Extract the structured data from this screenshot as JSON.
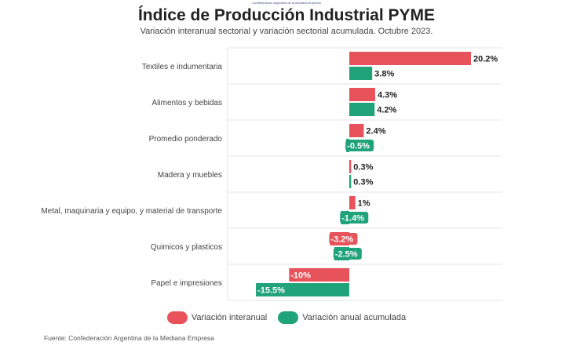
{
  "header_small": "Confederación Argentina de la Mediana Empresa",
  "source": "Fuente: Confederación Argentina de la Mediana Empresa",
  "colors": {
    "interanual": "#e8525a",
    "acumulada": "#21a37a"
  },
  "chart_data": {
    "type": "bar",
    "orientation": "horizontal",
    "title": "Índice de Producción Industrial PYME",
    "subtitle": "Variación interanual sectorial y variación sectorial acumulada. Octubre 2023.",
    "categories": [
      "Textiles e indumentaria",
      "Alimentos y bebidas",
      "Promedio ponderado",
      "Madera y muebles",
      "Metal, maquinaria y equipo, y material de transporte",
      "Quimicos y plasticos",
      "Papel e impresiones"
    ],
    "series": [
      {
        "name": "Variación interanual",
        "values": [
          20.2,
          4.3,
          2.4,
          0.3,
          1,
          -3.2,
          -10
        ],
        "labels": [
          "20.2%",
          "4.3%",
          "2.4%",
          "0.3%",
          "1%",
          "-3.2%",
          "-10%"
        ]
      },
      {
        "name": "Variación anual acumulada",
        "values": [
          3.8,
          4.2,
          -0.5,
          0.3,
          -1.4,
          -2.5,
          -15.5
        ],
        "labels": [
          "3.8%",
          "4.2%",
          "-0.5%",
          "0.3%",
          "-1.4%",
          "-2.5%",
          "-15.5%"
        ]
      }
    ],
    "xlim": [
      -16,
      20.2
    ],
    "grid": true,
    "legend_position": "bottom"
  }
}
